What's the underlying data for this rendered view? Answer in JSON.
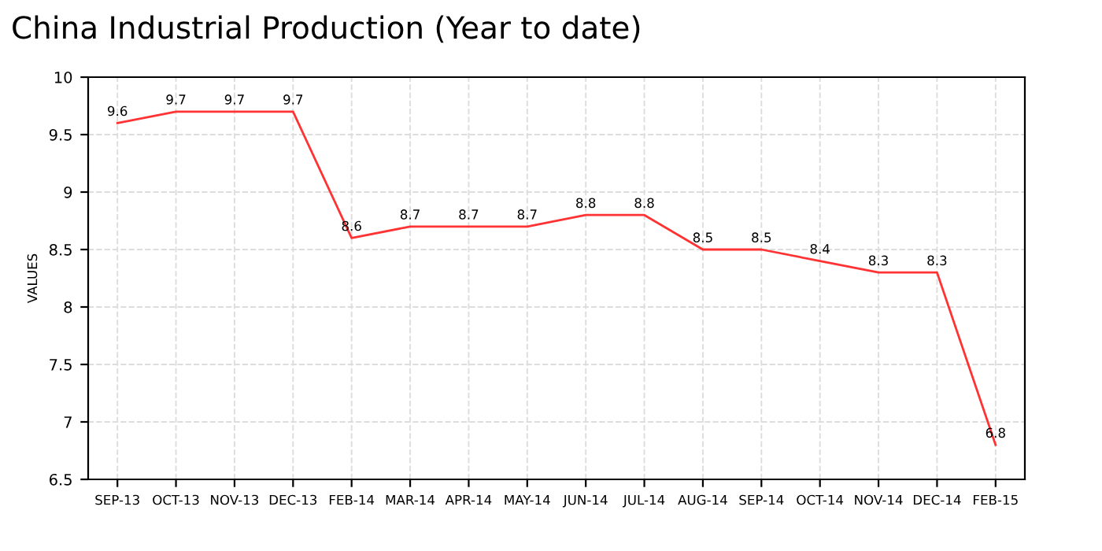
{
  "chart_data": {
    "type": "line",
    "title": "China Industrial Production (Year to date)",
    "ylabel": "VALUES",
    "categories": [
      "SEP-13",
      "OCT-13",
      "NOV-13",
      "DEC-13",
      "FEB-14",
      "MAR-14",
      "APR-14",
      "MAY-14",
      "JUN-14",
      "JUL-14",
      "AUG-14",
      "SEP-14",
      "OCT-14",
      "NOV-14",
      "DEC-14",
      "FEB-15"
    ],
    "series": [
      {
        "color": "#ff3333",
        "values": [
          9.6,
          9.7,
          9.7,
          9.7,
          8.6,
          8.7,
          8.7,
          8.7,
          8.8,
          8.8,
          8.5,
          8.5,
          8.4,
          8.3,
          8.3,
          6.8
        ]
      }
    ],
    "ylim": [
      6.5,
      10
    ],
    "yticks": [
      6.5,
      7,
      7.5,
      8,
      8.5,
      9,
      9.5,
      10
    ],
    "grid": true,
    "data_labels": true
  }
}
